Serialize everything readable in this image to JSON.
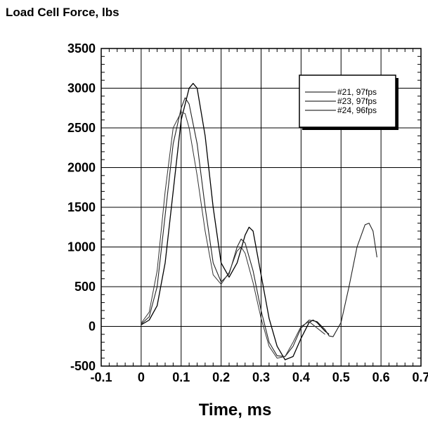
{
  "chart_data": {
    "type": "line",
    "title": "",
    "ylabel": "Load Cell Force, lbs",
    "xlabel": "Time, ms",
    "xlim": [
      -0.1,
      0.7
    ],
    "ylim": [
      -500,
      3500
    ],
    "x_ticks": [
      -0.1,
      0,
      0.1,
      0.2,
      0.3,
      0.4,
      0.5,
      0.6,
      0.7
    ],
    "x_tick_labels": [
      "-0.1",
      "0",
      "0.1",
      "0.2",
      "0.3",
      "0.4",
      "0.5",
      "0.6",
      "0.7"
    ],
    "y_ticks": [
      -500,
      0,
      500,
      1000,
      1500,
      2000,
      2500,
      3000,
      3500
    ],
    "y_tick_labels": [
      "-500",
      "0",
      "500",
      "1000",
      "1500",
      "2000",
      "2500",
      "3000",
      "3500"
    ],
    "grid": true,
    "legend_position": "top-right",
    "series": [
      {
        "name": "#21, 97fps",
        "x": [
          0.0,
          0.02,
          0.04,
          0.06,
          0.08,
          0.1,
          0.12,
          0.13,
          0.14,
          0.16,
          0.18,
          0.2,
          0.22,
          0.24,
          0.26,
          0.27,
          0.28,
          0.3,
          0.32,
          0.34,
          0.36,
          0.38,
          0.4,
          0.42,
          0.43,
          0.44,
          0.46,
          0.47
        ],
        "values": [
          20,
          80,
          260,
          800,
          1700,
          2600,
          3000,
          3060,
          3000,
          2400,
          1500,
          800,
          620,
          800,
          1150,
          1250,
          1200,
          650,
          100,
          -250,
          -420,
          -380,
          -150,
          50,
          80,
          50,
          -60,
          -100
        ]
      },
      {
        "name": "#23, 97fps",
        "x": [
          0.0,
          0.02,
          0.04,
          0.06,
          0.08,
          0.1,
          0.11,
          0.12,
          0.14,
          0.16,
          0.18,
          0.2,
          0.22,
          0.24,
          0.25,
          0.26,
          0.28,
          0.3,
          0.32,
          0.34,
          0.36,
          0.38,
          0.4,
          0.42,
          0.44,
          0.46,
          0.47,
          0.48,
          0.5,
          0.52,
          0.54,
          0.56,
          0.57,
          0.58,
          0.59
        ],
        "values": [
          30,
          120,
          500,
          1400,
          2300,
          2750,
          2880,
          2800,
          2300,
          1500,
          800,
          560,
          660,
          1000,
          1100,
          1050,
          700,
          200,
          -200,
          -370,
          -380,
          -250,
          -20,
          80,
          60,
          -40,
          -120,
          -130,
          50,
          500,
          1000,
          1280,
          1300,
          1200,
          870
        ]
      },
      {
        "name": "#24, 96fps",
        "x": [
          0.0,
          0.02,
          0.04,
          0.06,
          0.08,
          0.1,
          0.11,
          0.12,
          0.14,
          0.16,
          0.18,
          0.2,
          0.22,
          0.24,
          0.25,
          0.26,
          0.28,
          0.3,
          0.32,
          0.34,
          0.36,
          0.38,
          0.4,
          0.42,
          0.44,
          0.46
        ],
        "values": [
          40,
          180,
          700,
          1700,
          2500,
          2700,
          2680,
          2500,
          1900,
          1200,
          650,
          530,
          680,
          950,
          1000,
          920,
          550,
          100,
          -250,
          -400,
          -380,
          -200,
          0,
          60,
          -20,
          -100
        ]
      }
    ]
  },
  "colors": {
    "line": "#000000",
    "grid": "#000000",
    "background": "#ffffff"
  }
}
